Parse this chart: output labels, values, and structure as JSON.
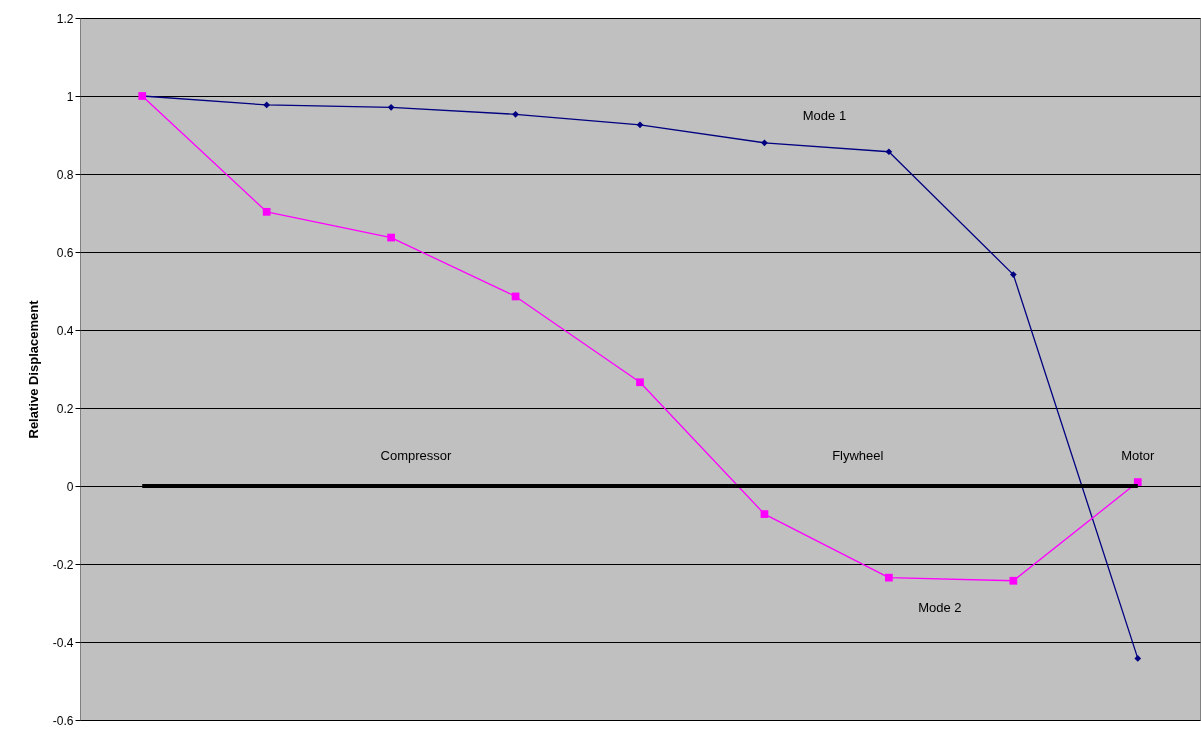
{
  "chart_data": {
    "type": "line",
    "ylabel": "Relative Displacement",
    "categories": [
      null,
      null,
      null,
      null,
      null,
      null,
      null,
      null,
      null
    ],
    "series": [
      {
        "name": "Mode 1",
        "color": "#000080",
        "marker": "diamond",
        "values": [
          1.0,
          0.977,
          0.971,
          0.953,
          0.926,
          0.88,
          0.857,
          0.542,
          -0.442
        ]
      },
      {
        "name": "Mode 2",
        "color": "#ff00ff",
        "marker": "square",
        "values": [
          1.0,
          0.703,
          0.637,
          0.486,
          0.266,
          -0.072,
          -0.235,
          -0.243,
          0.01
        ]
      },
      {
        "color": "#000000",
        "marker": "none",
        "values": [
          0,
          0,
          0,
          0,
          0,
          0,
          0,
          0,
          0
        ]
      }
    ],
    "annotations": [
      "Compressor",
      "Flywheel",
      "Motor"
    ],
    "ylim": [
      -0.6,
      1.2
    ],
    "yticks": [
      -0.6,
      -0.4,
      -0.2,
      0,
      0.2,
      0.4,
      0.6,
      0.8,
      1,
      1.2
    ],
    "grid": "y",
    "tick_labels": "y"
  }
}
